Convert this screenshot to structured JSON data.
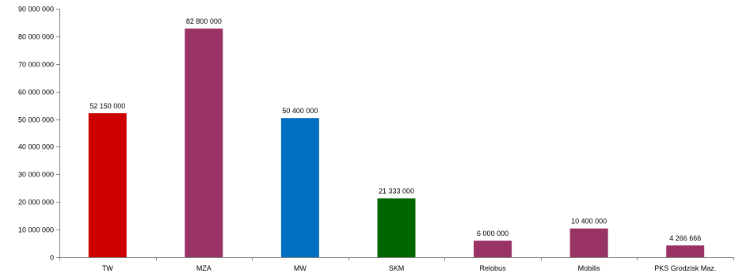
{
  "chart_data": {
    "type": "bar",
    "title": "",
    "xlabel": "",
    "ylabel": "",
    "ylim": [
      0,
      90000000
    ],
    "yticks": [
      0,
      10000000,
      20000000,
      30000000,
      40000000,
      50000000,
      60000000,
      70000000,
      80000000,
      90000000
    ],
    "ytick_labels": [
      "0",
      "10 000 000",
      "20 000 000",
      "30 000 000",
      "40 000 000",
      "50 000 000",
      "60 000 000",
      "70 000 000",
      "80 000 000",
      "90 000 000"
    ],
    "grid": false,
    "legend": "none",
    "categories": [
      "TW",
      "MZA",
      "MW",
      "SKM",
      "Relobus",
      "Mobilis",
      "PKS Grodzisk Maz."
    ],
    "values": [
      52150000,
      82800000,
      50400000,
      21333000,
      6000000,
      10400000,
      4266666
    ],
    "value_labels": [
      "52 150 000",
      "82 800 000",
      "50 400 000",
      "21 333 000",
      "6 000 000",
      "10 400 000",
      "4 266 666"
    ],
    "colors": [
      "#cc0000",
      "#993366",
      "#0070c0",
      "#006600",
      "#993366",
      "#993366",
      "#993366"
    ],
    "axis_color": "#808080"
  }
}
